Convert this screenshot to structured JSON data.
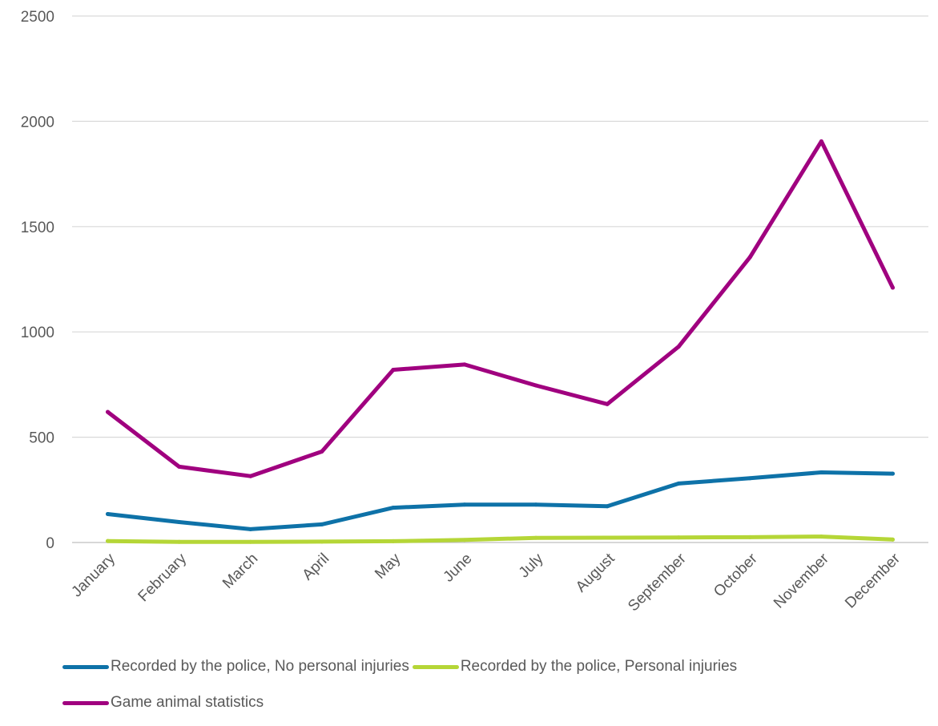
{
  "chart_data": {
    "type": "line",
    "title": "",
    "xlabel": "",
    "ylabel": "",
    "categories": [
      "January",
      "February",
      "March",
      "April",
      "May",
      "June",
      "July",
      "August",
      "September",
      "October",
      "November",
      "December"
    ],
    "ylim": [
      0,
      2500
    ],
    "yticks": [
      "0",
      "500",
      "1000",
      "1500",
      "2000",
      "2500"
    ],
    "grid": "horizontal",
    "legend_position": "bottom",
    "series": [
      {
        "name": "Recorded by the police, No personal injuries",
        "color": "#0e72a8",
        "values": [
          135,
          97,
          63,
          86,
          165,
          180,
          180,
          172,
          280,
          305,
          333,
          327
        ]
      },
      {
        "name": "Recorded by the police, Personal injuries",
        "color": "#b5d637",
        "values": [
          7,
          3,
          3,
          4,
          6,
          12,
          22,
          23,
          24,
          25,
          28,
          14
        ]
      },
      {
        "name": "Game animal statistics",
        "color": "#a0007f",
        "values": [
          620,
          360,
          315,
          432,
          820,
          845,
          746,
          657,
          930,
          1355,
          1905,
          1210
        ]
      }
    ]
  }
}
